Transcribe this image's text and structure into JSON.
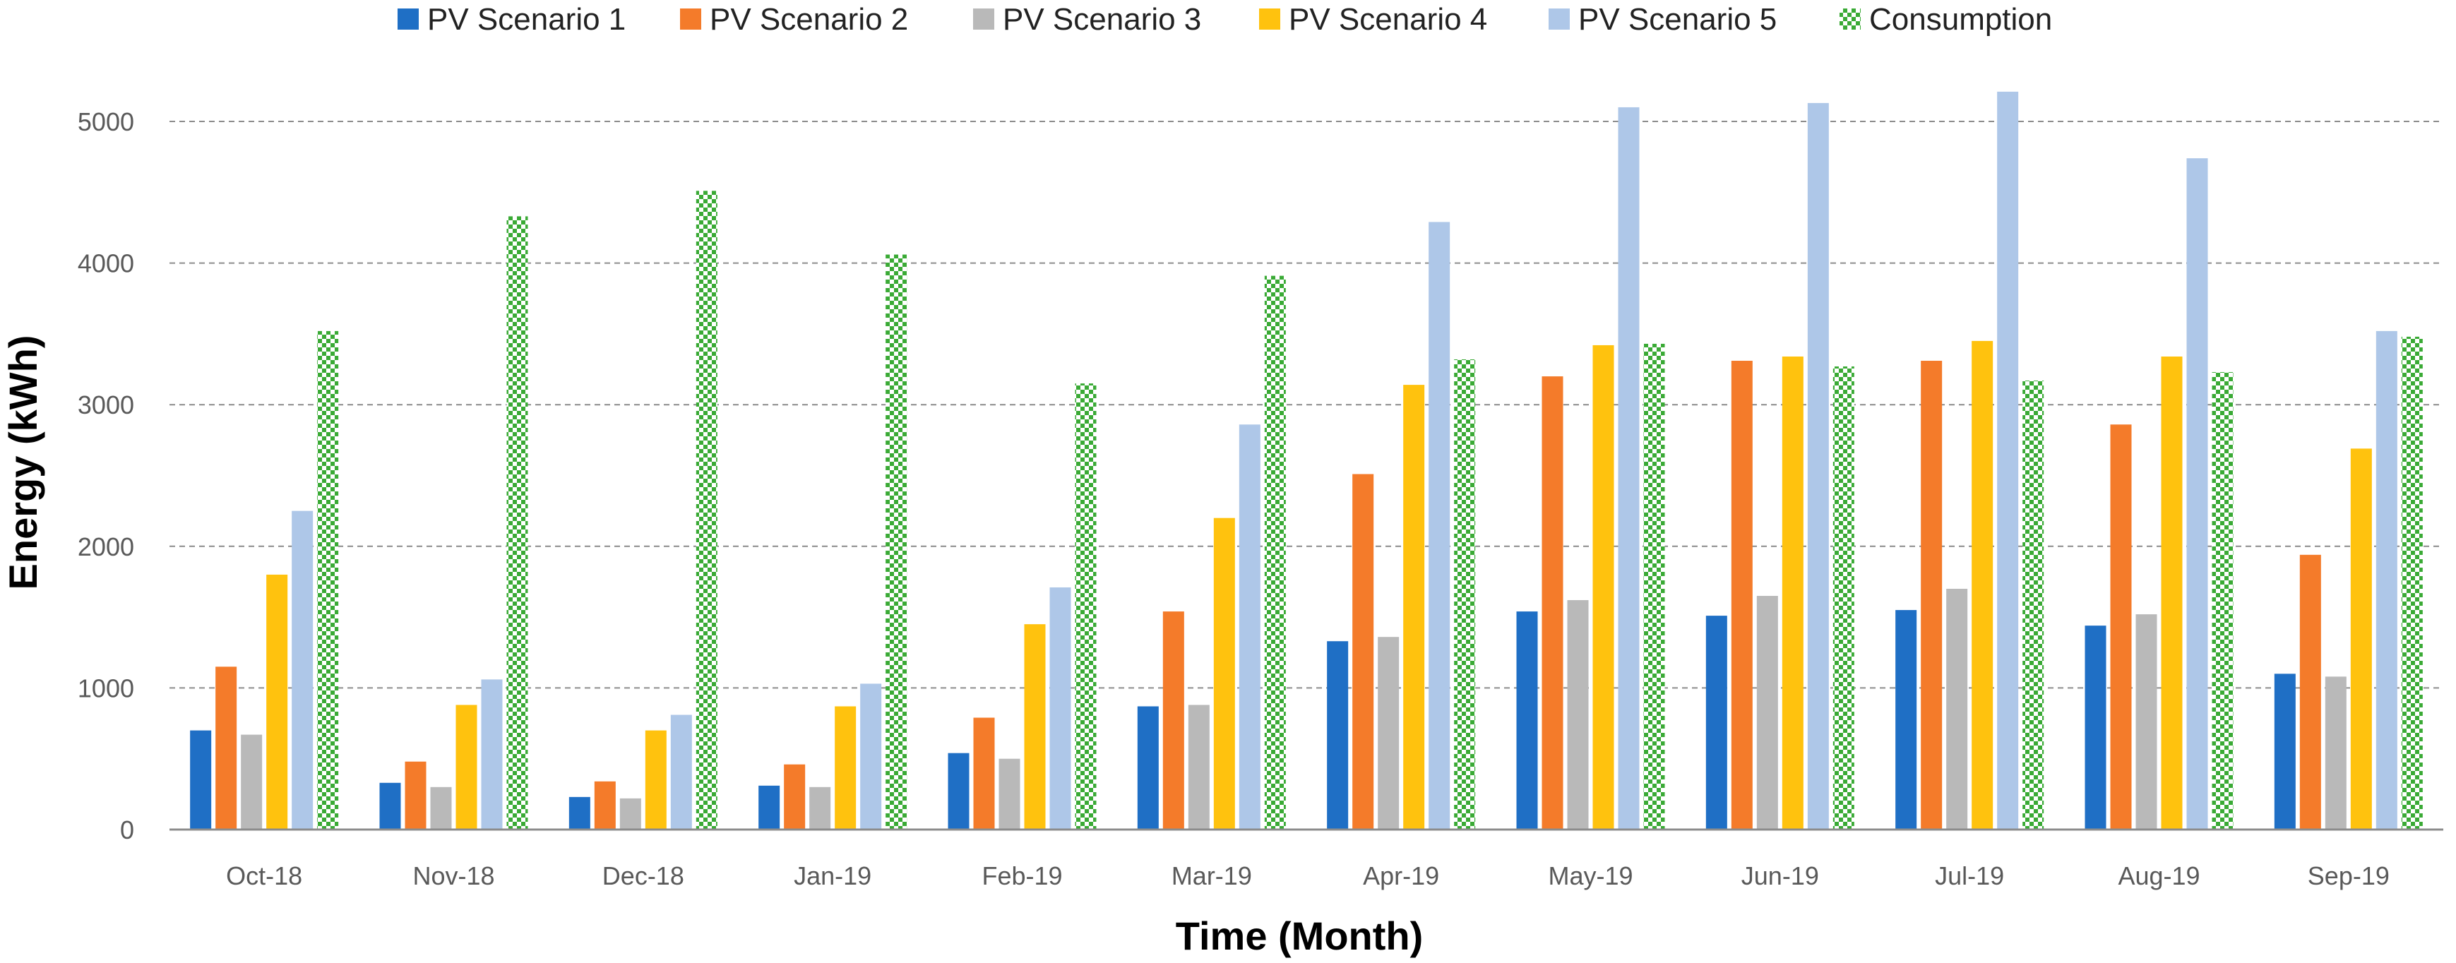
{
  "chart_data": {
    "type": "bar",
    "title": "",
    "xlabel": "Time (Month)",
    "ylabel": "Energy (kWh)",
    "ylim": [
      0,
      5000
    ],
    "yticks": [
      0,
      1000,
      2000,
      3000,
      4000,
      5000
    ],
    "grid": "horizontal dashed",
    "legend_position": "top",
    "categories": [
      "Oct-18",
      "Nov-18",
      "Dec-18",
      "Jan-19",
      "Feb-19",
      "Mar-19",
      "Apr-19",
      "May-19",
      "Jun-19",
      "Jul-19",
      "Aug-19",
      "Sep-19"
    ],
    "series": [
      {
        "name": "PV Scenario 1",
        "color": "#1f6fc5",
        "pattern": "solid",
        "values": [
          700,
          330,
          230,
          310,
          540,
          870,
          1330,
          1540,
          1510,
          1550,
          1440,
          1100
        ]
      },
      {
        "name": "PV Scenario 2",
        "color": "#f47b2a",
        "pattern": "solid",
        "values": [
          1150,
          480,
          340,
          460,
          790,
          1540,
          2510,
          3200,
          3310,
          3310,
          2860,
          1940
        ]
      },
      {
        "name": "PV Scenario 3",
        "color": "#b9b9b9",
        "pattern": "solid",
        "values": [
          670,
          300,
          220,
          300,
          500,
          880,
          1360,
          1620,
          1650,
          1700,
          1520,
          1080
        ]
      },
      {
        "name": "PV Scenario 4",
        "color": "#ffc20e",
        "pattern": "solid",
        "values": [
          1800,
          880,
          700,
          870,
          1450,
          2200,
          3140,
          3420,
          3340,
          3450,
          3340,
          2690
        ]
      },
      {
        "name": "PV Scenario 5",
        "color": "#aec7e8",
        "pattern": "solid",
        "values": [
          2250,
          1060,
          810,
          1030,
          1710,
          2860,
          4290,
          5100,
          5130,
          5210,
          4740,
          3520
        ]
      },
      {
        "name": "Consumption",
        "color": "#3aaa35",
        "pattern": "checker",
        "values": [
          3520,
          4330,
          4510,
          4060,
          3150,
          3910,
          3320,
          3430,
          3270,
          3170,
          3230,
          3480
        ]
      }
    ]
  }
}
